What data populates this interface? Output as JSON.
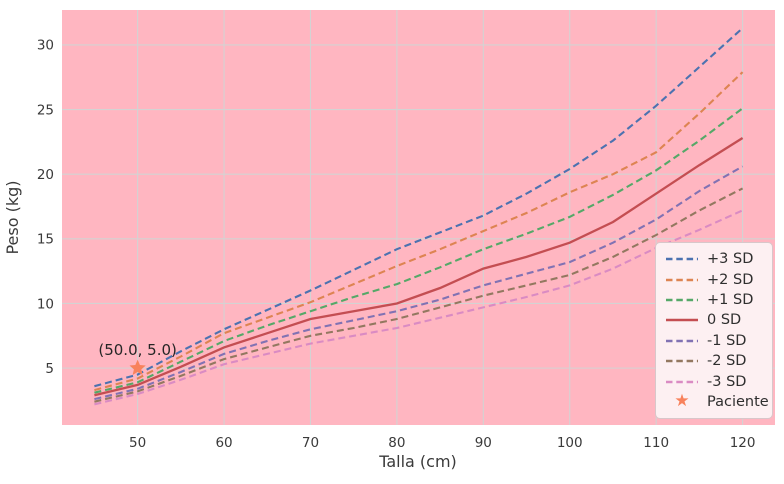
{
  "figure": {
    "background": "#ffffff",
    "plot_background": "#ffb6c1",
    "grid_color": "#d3d3d3",
    "text_color": "#3a3a3a",
    "legend_background": "#fdf0f2",
    "legend_border": "#d8c7ca"
  },
  "chart_data": {
    "type": "line",
    "title": "",
    "xlabel": "Talla (cm)",
    "ylabel": "Peso (kg)",
    "xlim": [
      41.25,
      123.75
    ],
    "ylim": [
      0.6,
      32.7
    ],
    "x_ticks": [
      50,
      60,
      70,
      80,
      90,
      100,
      110,
      120
    ],
    "y_ticks": [
      5,
      10,
      15,
      20,
      25,
      30
    ],
    "grid": true,
    "legend_position": "lower right",
    "x": [
      45,
      50,
      55,
      60,
      65,
      70,
      75,
      80,
      85,
      90,
      95,
      100,
      105,
      110,
      115,
      120
    ],
    "series": [
      {
        "name": "+3 SD",
        "color": "#4c72b0",
        "dash": "dashed",
        "values": [
          3.6,
          4.5,
          6.3,
          8.0,
          9.5,
          11.0,
          12.6,
          14.2,
          15.5,
          16.8,
          18.5,
          20.4,
          22.6,
          25.3,
          28.3,
          31.3
        ]
      },
      {
        "name": "+2 SD",
        "color": "#dd8452",
        "dash": "dashed",
        "values": [
          3.3,
          4.2,
          5.9,
          7.7,
          8.9,
          10.1,
          11.5,
          12.9,
          14.2,
          15.6,
          17.0,
          18.6,
          20.0,
          21.7,
          24.7,
          27.9
        ]
      },
      {
        "name": "+1 SD",
        "color": "#55a868",
        "dash": "dashed",
        "values": [
          3.1,
          3.9,
          5.5,
          7.1,
          8.3,
          9.4,
          10.5,
          11.5,
          12.8,
          14.2,
          15.4,
          16.7,
          18.4,
          20.3,
          22.6,
          25.1
        ]
      },
      {
        "name": "0 SD",
        "color": "#c44e52",
        "dash": "solid",
        "values": [
          2.9,
          3.7,
          5.1,
          6.6,
          7.7,
          8.8,
          9.4,
          10.0,
          11.2,
          12.7,
          13.6,
          14.7,
          16.3,
          18.5,
          20.7,
          22.8
        ]
      },
      {
        "name": "-1 SD",
        "color": "#8172b3",
        "dash": "dashed",
        "values": [
          2.6,
          3.4,
          4.7,
          6.1,
          7.1,
          8.0,
          8.7,
          9.4,
          10.3,
          11.4,
          12.3,
          13.2,
          14.7,
          16.5,
          18.7,
          20.6
        ]
      },
      {
        "name": "-2 SD",
        "color": "#937860",
        "dash": "dashed",
        "values": [
          2.4,
          3.2,
          4.4,
          5.7,
          6.6,
          7.5,
          8.1,
          8.8,
          9.7,
          10.6,
          11.4,
          12.2,
          13.6,
          15.3,
          17.2,
          18.9
        ]
      },
      {
        "name": "-3 SD",
        "color": "#da8bc3",
        "dash": "dashed",
        "values": [
          2.2,
          3.0,
          4.1,
          5.3,
          6.1,
          6.9,
          7.5,
          8.1,
          8.9,
          9.7,
          10.5,
          11.4,
          12.7,
          14.3,
          15.7,
          17.2
        ]
      }
    ],
    "patient": {
      "name": "Paciente",
      "x": 50.0,
      "y": 5.0,
      "color": "#f8825c",
      "marker": "star"
    },
    "annotation": {
      "label": "(50.0, 5.0)",
      "x": 50.0,
      "y": 5.0
    }
  }
}
